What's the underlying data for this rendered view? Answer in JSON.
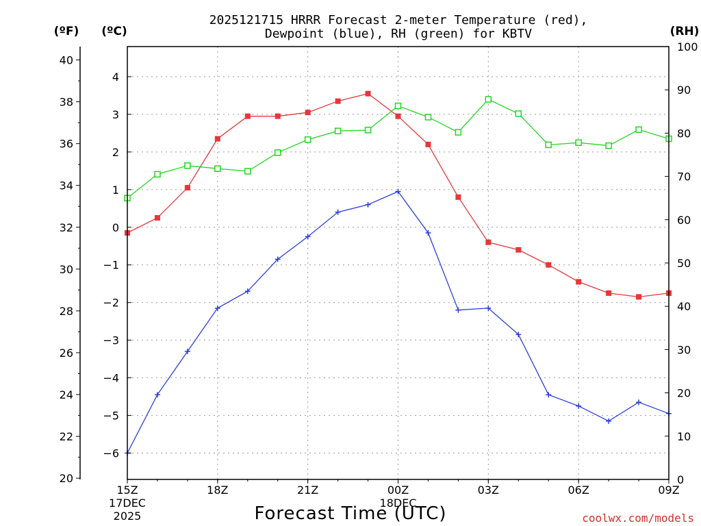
{
  "chart_data": {
    "type": "line",
    "title": [
      "2025121715 HRRR Forecast 2-meter Temperature (red),",
      "Dewpoint (blue), RH (green) for KBTV"
    ],
    "xlabel": "Forecast Time (UTC)",
    "credit": "coolwx.com/models",
    "axis_units": {
      "fahrenheit": "(ºF)",
      "celsius": "(ºC)",
      "rh": "(RH)"
    },
    "x_hours": [
      0,
      1,
      2,
      3,
      4,
      5,
      6,
      7,
      8,
      9,
      10,
      11,
      12,
      13,
      14,
      15,
      16,
      17,
      18
    ],
    "xlim": [
      0,
      18
    ],
    "x_ticks": [
      {
        "hour": 0,
        "lines": [
          "15Z",
          "17DEC",
          "2025"
        ]
      },
      {
        "hour": 3,
        "lines": [
          "18Z"
        ]
      },
      {
        "hour": 6,
        "lines": [
          "21Z"
        ]
      },
      {
        "hour": 9,
        "lines": [
          "00Z",
          "18DEC"
        ]
      },
      {
        "hour": 12,
        "lines": [
          "03Z"
        ]
      },
      {
        "hour": 15,
        "lines": [
          "06Z"
        ]
      },
      {
        "hour": 18,
        "lines": [
          "09Z"
        ]
      }
    ],
    "celsius_axis": {
      "lim": [
        -6.7,
        4.8
      ],
      "ticks": [
        4,
        3,
        2,
        1,
        0,
        -1,
        -2,
        -3,
        -4,
        -5,
        -6
      ]
    },
    "fahrenheit_axis": {
      "lim": [
        19.94,
        40.64
      ],
      "ticks": [
        40,
        38,
        36,
        34,
        32,
        30,
        28,
        26,
        24,
        22,
        20
      ]
    },
    "rh_axis": {
      "lim": [
        0,
        100
      ],
      "ticks": [
        100,
        90,
        80,
        70,
        60,
        50,
        40,
        30,
        20,
        10,
        0
      ]
    },
    "series": [
      {
        "name": "2-meter Temperature",
        "color": "#e8363a",
        "unit": "°C",
        "marker": "filled-square",
        "values": [
          -0.15,
          0.25,
          1.05,
          2.35,
          2.95,
          2.95,
          3.05,
          3.35,
          3.55,
          2.95,
          2.2,
          0.8,
          -0.4,
          -0.6,
          -1.0,
          -1.45,
          -1.75,
          -1.85,
          -1.75
        ]
      },
      {
        "name": "Dewpoint",
        "color": "#2a3ee0",
        "unit": "°C",
        "marker": "plus",
        "values": [
          -6.0,
          -4.45,
          -3.3,
          -2.15,
          -1.7,
          -0.85,
          -0.25,
          0.4,
          0.6,
          0.95,
          -0.15,
          -2.2,
          -2.15,
          -2.85,
          -4.45,
          -4.75,
          -5.15,
          -4.65,
          -4.95
        ]
      },
      {
        "name": "RH",
        "color": "#22d622",
        "unit": "%",
        "marker": "open-square",
        "values": [
          65,
          70.5,
          72.5,
          71.8,
          71.2,
          75.5,
          78.5,
          80.5,
          80.7,
          86.3,
          83.7,
          80.2,
          87.8,
          84.5,
          77.3,
          77.8,
          77.1,
          80.8,
          78.7
        ]
      }
    ]
  }
}
